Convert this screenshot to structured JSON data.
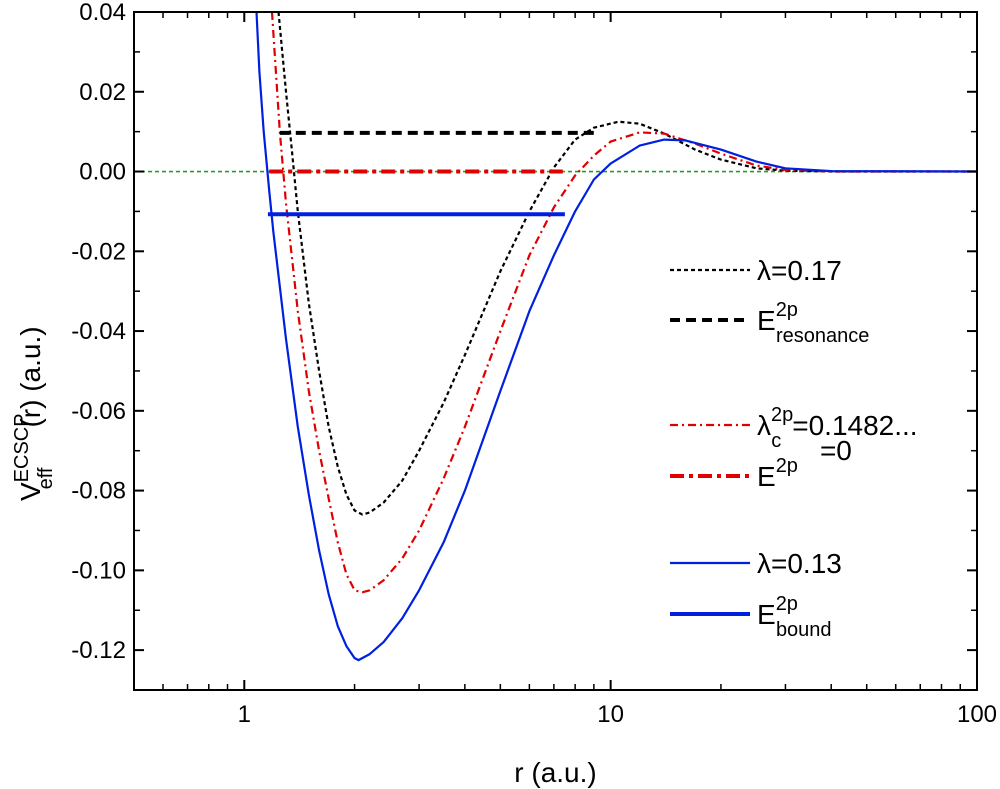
{
  "chart_data": {
    "type": "line",
    "xlabel": "r (a.u.)",
    "ylabel": {
      "main": "V",
      "superscript": "ECSCP",
      "subscript": "eff",
      "suffix": "(r) (a.u.)"
    },
    "xscale": "log",
    "xlim": [
      0.5,
      100
    ],
    "ylim": [
      -0.13,
      0.04
    ],
    "xticks": [
      {
        "value": 1,
        "label": "1"
      },
      {
        "value": 10,
        "label": "10"
      },
      {
        "value": 100,
        "label": "100"
      }
    ],
    "yticks": [
      {
        "value": 0.04,
        "label": "0.04"
      },
      {
        "value": 0.02,
        "label": "0.02"
      },
      {
        "value": 0.0,
        "label": "0.00"
      },
      {
        "value": -0.02,
        "label": "-0.02"
      },
      {
        "value": -0.04,
        "label": "-0.04"
      },
      {
        "value": -0.06,
        "label": "-0.06"
      },
      {
        "value": -0.08,
        "label": "-0.08"
      },
      {
        "value": -0.1,
        "label": "-0.10"
      },
      {
        "value": -0.12,
        "label": "-0.12"
      }
    ],
    "zero_line": {
      "y": 0.0,
      "color": "#2a9a2a"
    },
    "legend_position": "right",
    "series": [
      {
        "id": "lam017",
        "color": "#000000",
        "style": "dotted",
        "legend": {
          "main": "λ=0.17"
        },
        "points": [
          [
            1.24,
            0.04
          ],
          [
            1.3,
            0.02
          ],
          [
            1.35,
            0.005
          ],
          [
            1.4,
            -0.01
          ],
          [
            1.5,
            -0.033
          ],
          [
            1.6,
            -0.05
          ],
          [
            1.7,
            -0.064
          ],
          [
            1.8,
            -0.074
          ],
          [
            1.9,
            -0.081
          ],
          [
            2.0,
            -0.085
          ],
          [
            2.1,
            -0.086
          ],
          [
            2.2,
            -0.0855
          ],
          [
            2.4,
            -0.083
          ],
          [
            2.7,
            -0.0775
          ],
          [
            3.0,
            -0.07
          ],
          [
            3.5,
            -0.058
          ],
          [
            4.0,
            -0.046
          ],
          [
            5.0,
            -0.025
          ],
          [
            6.0,
            -0.01
          ],
          [
            7.0,
            0.001
          ],
          [
            8.0,
            0.008
          ],
          [
            9.0,
            0.011
          ],
          [
            10.5,
            0.0125
          ],
          [
            12.0,
            0.012
          ],
          [
            14.0,
            0.0095
          ],
          [
            17.0,
            0.0055
          ],
          [
            20.0,
            0.003
          ],
          [
            25.0,
            0.0008
          ],
          [
            30.0,
            0.0002
          ],
          [
            40.0,
            0.0
          ],
          [
            100.0,
            0.0
          ]
        ]
      },
      {
        "id": "lamc",
        "color": "#e00000",
        "style": "dashdot",
        "legend": {
          "main": "λ",
          "superscript": "2p",
          "subscript": "c",
          "suffix": "=0.1482..."
        },
        "points": [
          [
            1.19,
            0.04
          ],
          [
            1.22,
            0.025
          ],
          [
            1.25,
            0.01
          ],
          [
            1.3,
            -0.008
          ],
          [
            1.4,
            -0.035
          ],
          [
            1.5,
            -0.055
          ],
          [
            1.6,
            -0.07
          ],
          [
            1.7,
            -0.082
          ],
          [
            1.8,
            -0.093
          ],
          [
            1.9,
            -0.101
          ],
          [
            2.0,
            -0.105
          ],
          [
            2.1,
            -0.1055
          ],
          [
            2.2,
            -0.105
          ],
          [
            2.4,
            -0.1025
          ],
          [
            2.7,
            -0.097
          ],
          [
            3.0,
            -0.09
          ],
          [
            3.5,
            -0.077
          ],
          [
            4.0,
            -0.064
          ],
          [
            5.0,
            -0.04
          ],
          [
            6.0,
            -0.021
          ],
          [
            7.0,
            -0.009
          ],
          [
            8.0,
            -0.001
          ],
          [
            9.0,
            0.004
          ],
          [
            10.0,
            0.0075
          ],
          [
            12.0,
            0.0098
          ],
          [
            14.0,
            0.0095
          ],
          [
            17.0,
            0.007
          ],
          [
            20.0,
            0.0045
          ],
          [
            25.0,
            0.0015
          ],
          [
            30.0,
            0.0004
          ],
          [
            40.0,
            0.0
          ],
          [
            100.0,
            0.0
          ]
        ]
      },
      {
        "id": "lam013",
        "color": "#0020e0",
        "style": "solid",
        "legend": {
          "main": "λ=0.13"
        },
        "points": [
          [
            1.08,
            0.04
          ],
          [
            1.1,
            0.025
          ],
          [
            1.13,
            0.01
          ],
          [
            1.17,
            -0.005
          ],
          [
            1.2,
            -0.015
          ],
          [
            1.3,
            -0.042
          ],
          [
            1.4,
            -0.064
          ],
          [
            1.5,
            -0.081
          ],
          [
            1.6,
            -0.095
          ],
          [
            1.7,
            -0.106
          ],
          [
            1.8,
            -0.114
          ],
          [
            1.9,
            -0.119
          ],
          [
            2.0,
            -0.122
          ],
          [
            2.05,
            -0.1225
          ],
          [
            2.2,
            -0.121
          ],
          [
            2.4,
            -0.118
          ],
          [
            2.7,
            -0.112
          ],
          [
            3.0,
            -0.105
          ],
          [
            3.5,
            -0.093
          ],
          [
            4.0,
            -0.08
          ],
          [
            5.0,
            -0.055
          ],
          [
            6.0,
            -0.035
          ],
          [
            7.0,
            -0.021
          ],
          [
            8.0,
            -0.01
          ],
          [
            9.0,
            -0.002
          ],
          [
            10.0,
            0.002
          ],
          [
            12.0,
            0.0065
          ],
          [
            14.0,
            0.008
          ],
          [
            16.0,
            0.0078
          ],
          [
            20.0,
            0.0055
          ],
          [
            25.0,
            0.0025
          ],
          [
            30.0,
            0.0008
          ],
          [
            40.0,
            0.0001
          ],
          [
            100.0,
            0.0
          ]
        ]
      }
    ],
    "energy_levels": [
      {
        "id": "resonance",
        "color": "#000000",
        "style": "dashed",
        "y": 0.0097,
        "x_start": 1.25,
        "x_end": 9.1,
        "legend": {
          "main": "E",
          "superscript": "2p",
          "subscript": "resonance",
          "suffix": ""
        }
      },
      {
        "id": "zero",
        "color": "#e00000",
        "style": "dashdot",
        "y": 0.0,
        "x_start": 1.17,
        "x_end": 7.4,
        "legend": {
          "main": "E",
          "superscript": "2p",
          "subscript": "",
          "suffix": "=0"
        }
      },
      {
        "id": "bound",
        "color": "#0020e0",
        "style": "solid",
        "y": -0.0107,
        "x_start": 1.16,
        "x_end": 7.5,
        "legend": {
          "main": "E",
          "superscript": "2p",
          "subscript": "bound",
          "suffix": ""
        }
      }
    ]
  }
}
